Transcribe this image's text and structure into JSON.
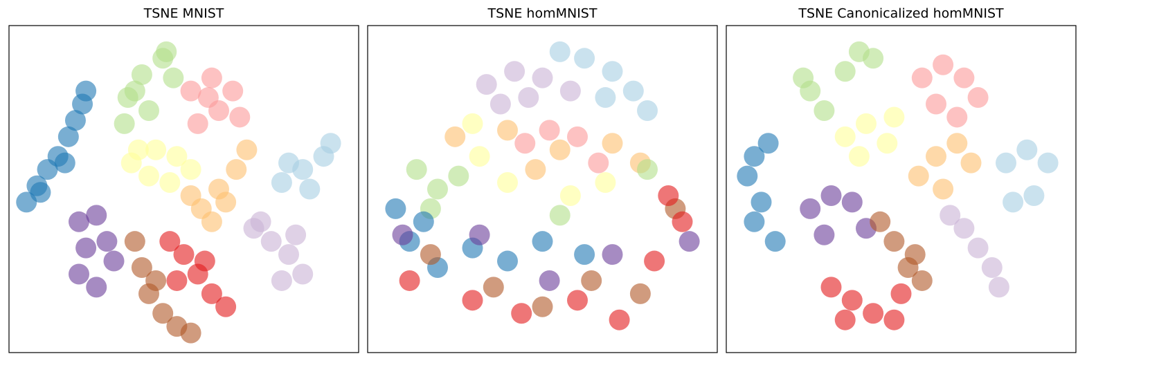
{
  "chart_data": [
    {
      "type": "scatter",
      "title": "TSNE MNIST",
      "xlim": [
        0,
        100
      ],
      "ylim": [
        0,
        100
      ],
      "series": [
        {
          "color": "#1f78b4",
          "x": [
            5,
            8,
            11,
            14,
            17,
            19,
            21,
            22,
            9,
            16
          ],
          "y": [
            46,
            51,
            56,
            60,
            66,
            71,
            76,
            80,
            49,
            58
          ]
        },
        {
          "color": "#b2df8a",
          "x": [
            34,
            38,
            44,
            47,
            40,
            33,
            45,
            36
          ],
          "y": [
            78,
            85,
            90,
            84,
            74,
            70,
            92,
            80
          ]
        },
        {
          "color": "#fb9a99",
          "x": [
            52,
            58,
            64,
            60,
            54,
            66,
            57
          ],
          "y": [
            80,
            84,
            80,
            74,
            70,
            72,
            78
          ]
        },
        {
          "color": "#ffff99",
          "x": [
            35,
            42,
            48,
            52,
            40,
            46,
            37
          ],
          "y": [
            58,
            62,
            60,
            56,
            54,
            52,
            62
          ]
        },
        {
          "color": "#fdbf6f",
          "x": [
            55,
            60,
            65,
            68,
            58,
            62,
            52
          ],
          "y": [
            44,
            50,
            56,
            62,
            40,
            46,
            48
          ]
        },
        {
          "color": "#a6cee3",
          "x": [
            78,
            84,
            90,
            92,
            86,
            80
          ],
          "y": [
            52,
            56,
            60,
            64,
            50,
            58
          ]
        },
        {
          "color": "#cab2d6",
          "x": [
            70,
            75,
            80,
            84,
            78,
            72,
            82
          ],
          "y": [
            38,
            34,
            30,
            24,
            22,
            40,
            36
          ]
        },
        {
          "color": "#6a3d9a",
          "x": [
            20,
            25,
            22,
            28,
            20,
            25,
            30
          ],
          "y": [
            40,
            42,
            32,
            34,
            24,
            20,
            28
          ]
        },
        {
          "color": "#b15928",
          "x": [
            36,
            38,
            40,
            44,
            48,
            52,
            42
          ],
          "y": [
            34,
            26,
            18,
            12,
            8,
            6,
            22
          ]
        },
        {
          "color": "#e31a1c",
          "x": [
            46,
            50,
            54,
            58,
            62,
            48,
            56
          ],
          "y": [
            34,
            30,
            24,
            18,
            14,
            22,
            28
          ]
        }
      ]
    },
    {
      "type": "scatter",
      "title": "TSNE homMNIST",
      "xlim": [
        0,
        100
      ],
      "ylim": [
        0,
        100
      ],
      "series": [
        {
          "color": "#cab2d6",
          "x": [
            34,
            42,
            50,
            58,
            46,
            38
          ],
          "y": [
            82,
            86,
            84,
            80,
            78,
            76
          ]
        },
        {
          "color": "#a6cee3",
          "x": [
            55,
            62,
            70,
            76,
            80,
            68
          ],
          "y": [
            92,
            90,
            86,
            80,
            74,
            78
          ]
        },
        {
          "color": "#fdbf6f",
          "x": [
            25,
            40,
            55,
            70,
            78,
            48
          ],
          "y": [
            66,
            68,
            62,
            64,
            58,
            56
          ]
        },
        {
          "color": "#fb9a99",
          "x": [
            45,
            60,
            66,
            52
          ],
          "y": [
            64,
            66,
            58,
            68
          ]
        },
        {
          "color": "#ffff99",
          "x": [
            32,
            40,
            58,
            68,
            30
          ],
          "y": [
            60,
            52,
            48,
            52,
            70
          ]
        },
        {
          "color": "#b2df8a",
          "x": [
            14,
            20,
            26,
            18,
            55,
            80
          ],
          "y": [
            56,
            50,
            54,
            44,
            42,
            56
          ]
        },
        {
          "color": "#1f78b4",
          "x": [
            8,
            12,
            20,
            30,
            40,
            50,
            16,
            62
          ],
          "y": [
            44,
            34,
            26,
            32,
            28,
            34,
            40,
            30
          ]
        },
        {
          "color": "#6a3d9a",
          "x": [
            10,
            32,
            52,
            70,
            92
          ],
          "y": [
            36,
            36,
            22,
            30,
            34
          ]
        },
        {
          "color": "#b15928",
          "x": [
            18,
            36,
            50,
            64,
            78,
            88
          ],
          "y": [
            30,
            20,
            14,
            22,
            18,
            44
          ]
        },
        {
          "color": "#e31a1c",
          "x": [
            12,
            30,
            44,
            60,
            82,
            90,
            86,
            72
          ],
          "y": [
            22,
            16,
            12,
            16,
            28,
            40,
            48,
            10
          ]
        }
      ]
    },
    {
      "type": "scatter",
      "title": "TSNE Canonicalized homMNIST",
      "xlim": [
        0,
        100
      ],
      "ylim": [
        0,
        100
      ],
      "series": [
        {
          "color": "#b2df8a",
          "x": [
            24,
            28,
            34,
            38,
            42,
            22
          ],
          "y": [
            80,
            74,
            86,
            92,
            90,
            84
          ]
        },
        {
          "color": "#fb9a99",
          "x": [
            56,
            62,
            68,
            72,
            60,
            66
          ],
          "y": [
            84,
            88,
            84,
            78,
            76,
            72
          ]
        },
        {
          "color": "#ffff99",
          "x": [
            34,
            40,
            46,
            38,
            48
          ],
          "y": [
            66,
            70,
            64,
            60,
            72
          ]
        },
        {
          "color": "#fdbf6f",
          "x": [
            55,
            60,
            66,
            70,
            62
          ],
          "y": [
            54,
            60,
            64,
            58,
            50
          ]
        },
        {
          "color": "#a6cee3",
          "x": [
            80,
            86,
            92,
            88,
            82
          ],
          "y": [
            58,
            62,
            58,
            48,
            46
          ]
        },
        {
          "color": "#1f78b4",
          "x": [
            6,
            8,
            12,
            10,
            8,
            14
          ],
          "y": [
            54,
            60,
            64,
            46,
            40,
            34
          ]
        },
        {
          "color": "#6a3d9a",
          "x": [
            24,
            30,
            36,
            40,
            28
          ],
          "y": [
            44,
            48,
            46,
            38,
            36
          ]
        },
        {
          "color": "#b15928",
          "x": [
            44,
            48,
            52,
            56,
            54
          ],
          "y": [
            40,
            34,
            26,
            22,
            30
          ]
        },
        {
          "color": "#cab2d6",
          "x": [
            64,
            68,
            72,
            76,
            78
          ],
          "y": [
            42,
            38,
            32,
            26,
            20
          ]
        },
        {
          "color": "#e31a1c",
          "x": [
            30,
            36,
            42,
            48,
            34,
            50
          ],
          "y": [
            20,
            16,
            12,
            10,
            10,
            18
          ]
        }
      ]
    }
  ]
}
